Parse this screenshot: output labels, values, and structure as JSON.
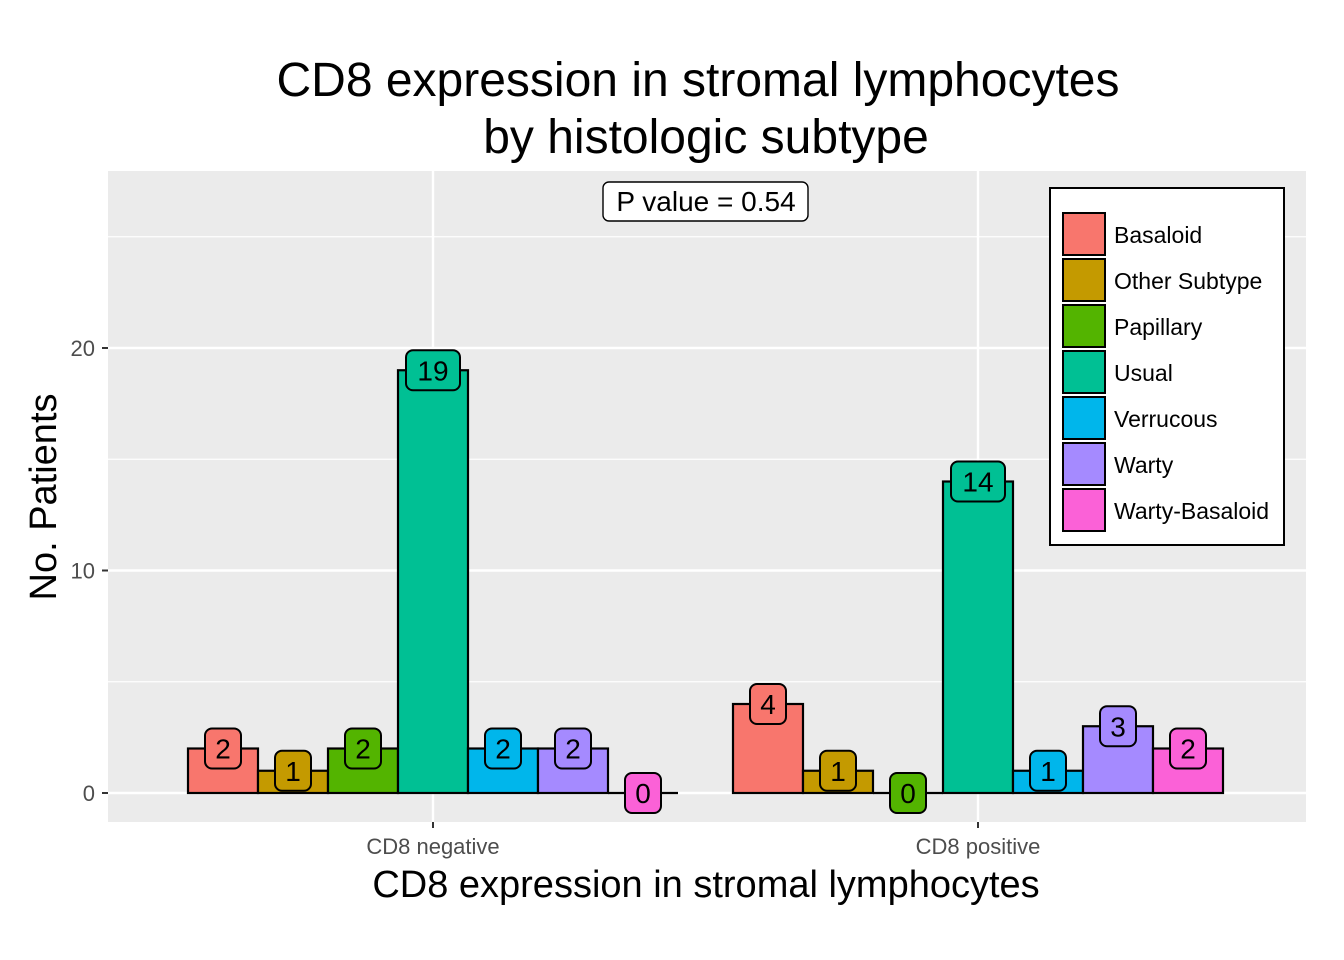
{
  "chart_data": {
    "type": "bar",
    "title_lines": [
      "CD8 expression in stromal lymphocytes",
      "by histologic subtype"
    ],
    "xlabel": "CD8 expression in stromal lymphocytes",
    "ylabel": "No. Patients",
    "categories": [
      "CD8 negative",
      "CD8 positive"
    ],
    "ylim": [
      -1.3,
      27.7
    ],
    "yticks": [
      0,
      10,
      20
    ],
    "grid": true,
    "legend_position": "top-right",
    "annotation": "P value = 0.54",
    "series": [
      {
        "name": "Basaloid",
        "color": "#F8766D",
        "values": [
          2,
          4
        ]
      },
      {
        "name": "Other Subtype",
        "color": "#C49A00",
        "values": [
          1,
          1
        ]
      },
      {
        "name": "Papillary",
        "color": "#53B400",
        "values": [
          2,
          0
        ]
      },
      {
        "name": "Usual",
        "color": "#00C094",
        "values": [
          19,
          14
        ]
      },
      {
        "name": "Verrucous",
        "color": "#00B6EB",
        "values": [
          2,
          1
        ]
      },
      {
        "name": "Warty",
        "color": "#A58AFF",
        "values": [
          2,
          3
        ]
      },
      {
        "name": "Warty-Basaloid",
        "color": "#FB61D7",
        "values": [
          0,
          2
        ]
      }
    ]
  }
}
